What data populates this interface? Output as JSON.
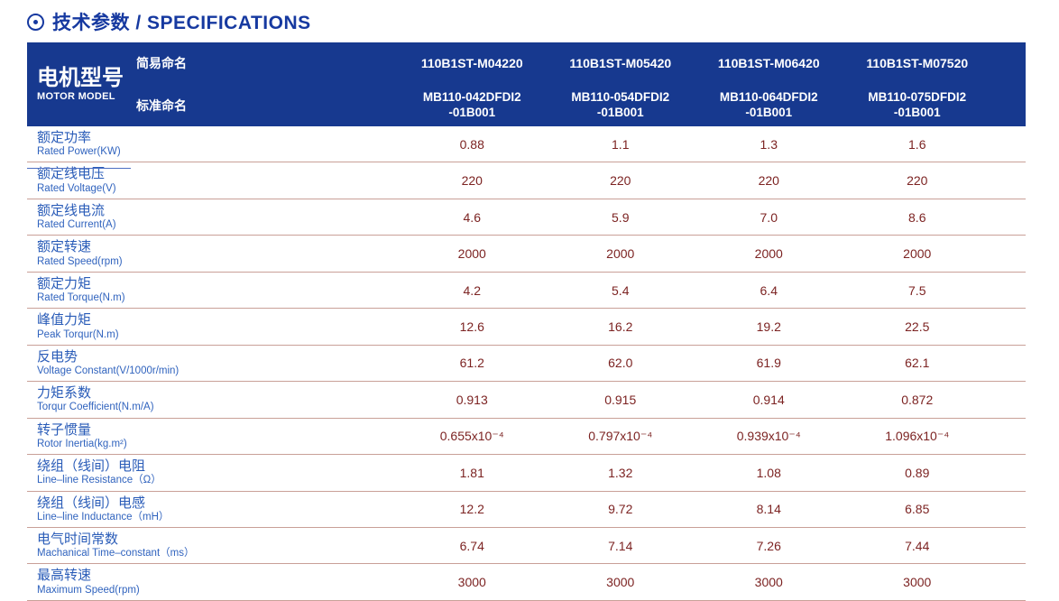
{
  "page": {
    "title": "技术参数 / SPECIFICATIONS",
    "title_icon": "circled-dot-icon"
  },
  "colors": {
    "title_blue": "#1639a0",
    "header_bg": "#17398f",
    "header_divider": "#4d6fc2",
    "label_blue": "#2a5cb8",
    "value_maroon": "#7c2322",
    "row_separator": "#c9a098"
  },
  "table": {
    "header": {
      "model_label_cn": "电机型号",
      "model_label_en": "MOTOR MODEL",
      "simple_name_label": "简易命名",
      "standard_name_label": "标准命名",
      "simple_names": [
        "110B1ST-M04220",
        "110B1ST-M05420",
        "110B1ST-M06420",
        "110B1ST-M07520"
      ],
      "standard_names": [
        "MB110-042DFDI2\n-01B001",
        "MB110-054DFDI2\n-01B001",
        "MB110-064DFDI2\n-01B001",
        "MB110-075DFDI2\n-01B001"
      ]
    },
    "rows": [
      {
        "label_cn": "额定功率",
        "label_en": "Rated Power(KW)",
        "values": [
          "0.88",
          "1.1",
          "1.3",
          "1.6"
        ]
      },
      {
        "label_cn": "额定线电压",
        "label_en": "Rated Voltage(V)",
        "values": [
          "220",
          "220",
          "220",
          "220"
        ]
      },
      {
        "label_cn": "额定线电流",
        "label_en": "Rated Current(A)",
        "values": [
          "4.6",
          "5.9",
          "7.0",
          "8.6"
        ]
      },
      {
        "label_cn": "额定转速",
        "label_en": "Rated Speed(rpm)",
        "values": [
          "2000",
          "2000",
          "2000",
          "2000"
        ]
      },
      {
        "label_cn": "额定力矩",
        "label_en": "Rated Torque(N.m)",
        "values": [
          "4.2",
          "5.4",
          "6.4",
          "7.5"
        ]
      },
      {
        "label_cn": "峰值力矩",
        "label_en": "Peak Torqur(N.m)",
        "values": [
          "12.6",
          "16.2",
          "19.2",
          "22.5"
        ]
      },
      {
        "label_cn": "反电势",
        "label_en": "Voltage Constant(V/1000r/min)",
        "values": [
          "61.2",
          "62.0",
          "61.9",
          "62.1"
        ]
      },
      {
        "label_cn": "力矩系数",
        "label_en": "Torqur Coefficient(N.m/A)",
        "values": [
          "0.913",
          "0.915",
          "0.914",
          "0.872"
        ]
      },
      {
        "label_cn": "转子惯量",
        "label_en": "Rotor Inertia(kg.m²)",
        "values": [
          "0.655x10⁻⁴",
          "0.797x10⁻⁴",
          "0.939x10⁻⁴",
          "1.096x10⁻⁴"
        ]
      },
      {
        "label_cn": "绕组（线间）电阻",
        "label_en": "Line–line Resistance（Ω）",
        "values": [
          "1.81",
          "1.32",
          "1.08",
          "0.89"
        ]
      },
      {
        "label_cn": "绕组（线间）电感",
        "label_en": "Line–line Inductance（mH）",
        "values": [
          "12.2",
          "9.72",
          "8.14",
          "6.85"
        ]
      },
      {
        "label_cn": "电气时间常数",
        "label_en": "Machanical Time–constant（ms）",
        "values": [
          "6.74",
          "7.14",
          "7.26",
          "7.44"
        ]
      },
      {
        "label_cn": "最高转速",
        "label_en": "Maximum Speed(rpm)",
        "values": [
          "3000",
          "3000",
          "3000",
          "3000"
        ]
      }
    ]
  }
}
